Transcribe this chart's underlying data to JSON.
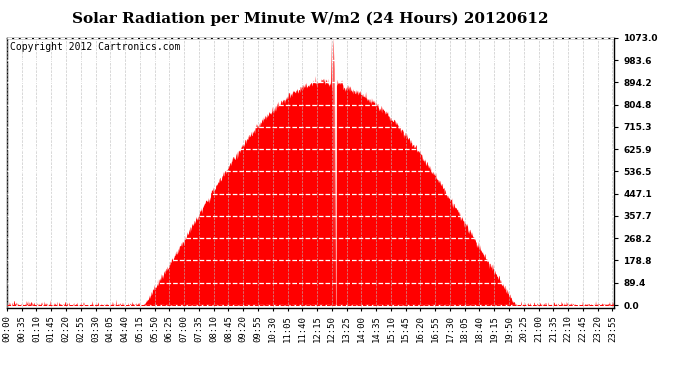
{
  "title": "Solar Radiation per Minute W/m2 (24 Hours) 20120612",
  "copyright": "Copyright 2012 Cartronics.com",
  "ymin": 0.0,
  "ymax": 1073.0,
  "yticks": [
    0.0,
    89.4,
    178.8,
    268.2,
    357.7,
    447.1,
    536.5,
    625.9,
    715.3,
    804.8,
    894.2,
    983.6,
    1073.0
  ],
  "fill_color": "#ff0000",
  "line_color": "#ff0000",
  "grid_color": "#bbbbbb",
  "bg_color": "#ffffff",
  "border_color": "#000000",
  "hline_color": "#ff0000",
  "title_fontsize": 11,
  "copyright_fontsize": 7,
  "tick_label_fontsize": 6.5,
  "xtick_step": 35,
  "total_minutes": 1440,
  "sunrise_minute": 315,
  "sunset_minute": 1215,
  "peak_minute": 795,
  "peak_value": 900,
  "spike_minutes": [
    768,
    770,
    772,
    773,
    775,
    776,
    778
  ],
  "spike_values": [
    1073,
    850,
    1040,
    1073,
    950,
    1020,
    880
  ],
  "dip_minutes": [
    774,
    777,
    779,
    780
  ],
  "noise_std": 8,
  "random_seed": 123
}
